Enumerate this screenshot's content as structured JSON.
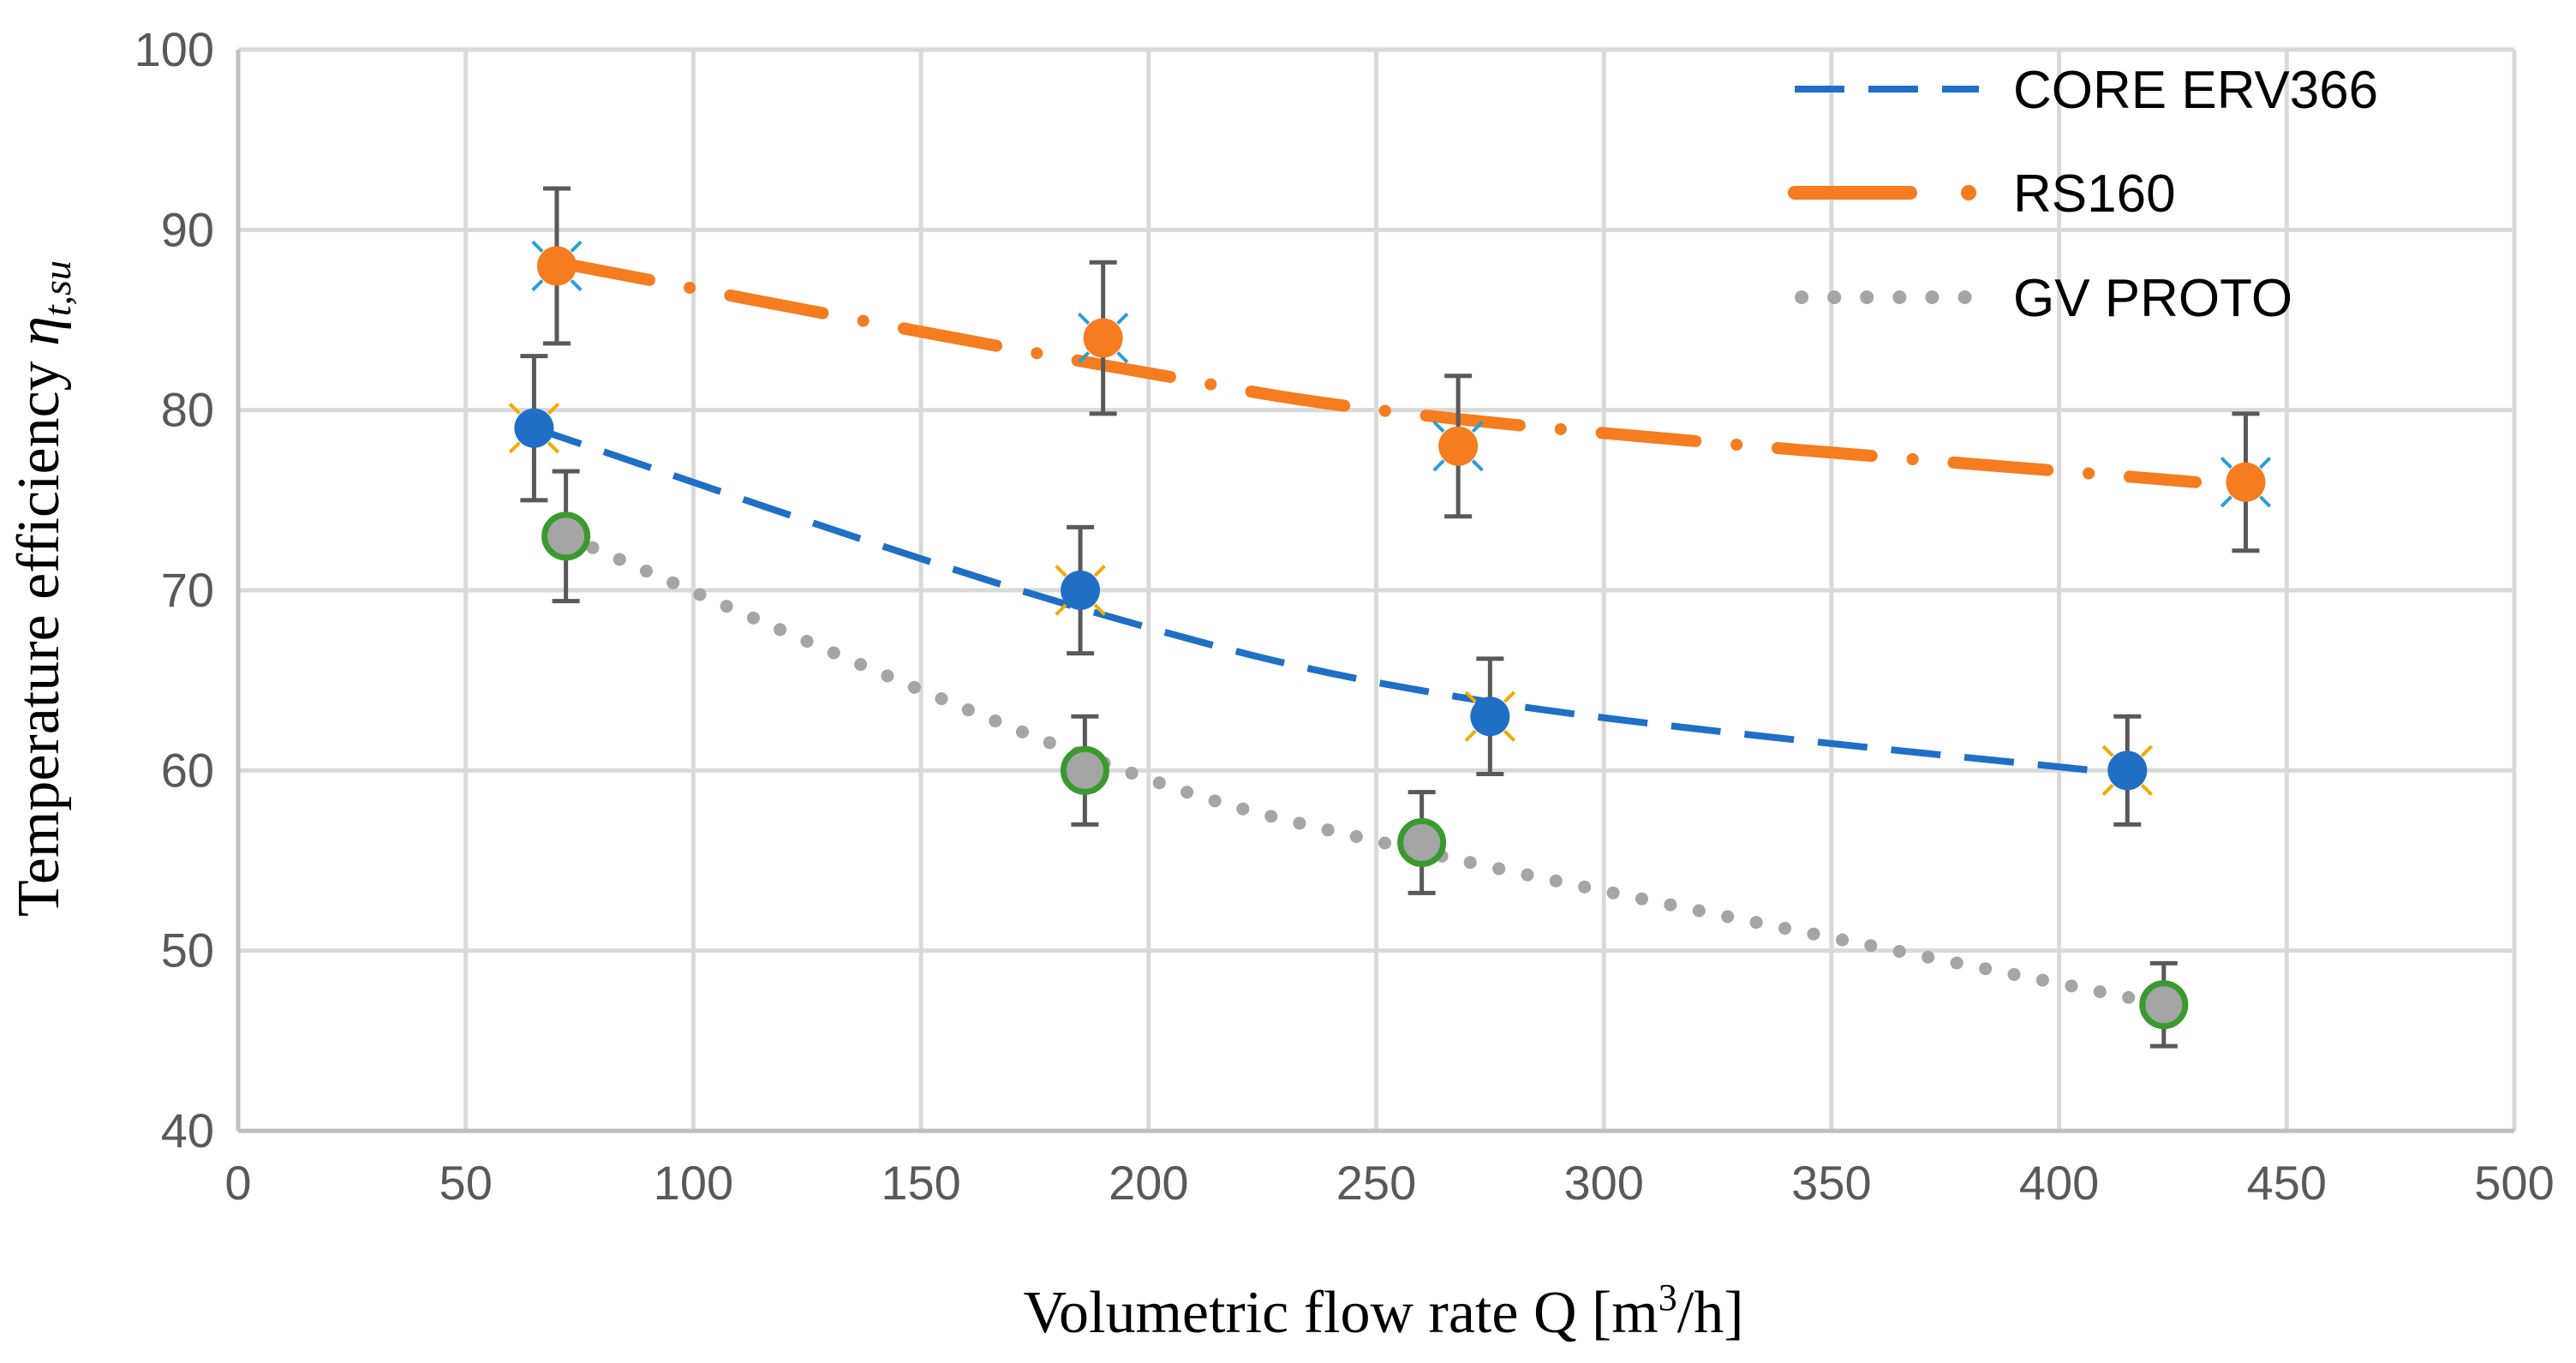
{
  "chart_data": {
    "type": "scatter",
    "title": "",
    "xlabel": "Volumetric flow rate Q [m³/h]",
    "xlabel_parts": {
      "prefix": "Volumetric flow rate Q [m",
      "sup": "3",
      "suffix": "/h]"
    },
    "ylabel": "Temperature efficiency η t,su",
    "ylabel_parts": {
      "text": "Temperature efficiency ",
      "symbol": "η",
      "sub": "t,su"
    },
    "xlim": [
      0,
      500
    ],
    "ylim": [
      40,
      100
    ],
    "xticks": [
      0,
      50,
      100,
      150,
      200,
      250,
      300,
      350,
      400,
      450,
      500
    ],
    "yticks": [
      40,
      50,
      60,
      70,
      80,
      90,
      100
    ],
    "grid": true,
    "legend_position": "top-right",
    "series": [
      {
        "name": "CORE ERV366",
        "color": "#1f6fc5",
        "trend_style": "dashed",
        "marker": "filled-circle-blue",
        "x": [
          65,
          185,
          275,
          415
        ],
        "y": [
          79,
          70,
          63,
          60
        ],
        "error": [
          4,
          3.5,
          3.2,
          3
        ],
        "trendline": [
          [
            65,
            79
          ],
          [
            185,
            69
          ],
          [
            275,
            63.8
          ],
          [
            415,
            59.8
          ]
        ]
      },
      {
        "name": "RS160",
        "color": "#f57c1f",
        "trend_style": "dash-dot",
        "marker": "filled-circle-orange",
        "x": [
          70,
          190,
          268,
          441
        ],
        "y": [
          88,
          84,
          78,
          76
        ],
        "error": [
          4.3,
          4.2,
          3.9,
          3.8
        ],
        "trendline": [
          [
            70,
            88.2
          ],
          [
            190,
            82.5
          ],
          [
            268,
            79.5
          ],
          [
            430,
            76
          ]
        ]
      },
      {
        "name": "GV PROTO",
        "color": "#a5a5a5",
        "trend_style": "dotted",
        "marker": "grey-circle-green-ring",
        "x": [
          72,
          186,
          260,
          423
        ],
        "y": [
          73,
          60,
          56,
          47
        ],
        "error": [
          3.6,
          3,
          2.8,
          2.3
        ],
        "trendline": [
          [
            72,
            73
          ],
          [
            186,
            60.8
          ],
          [
            260,
            55.5
          ],
          [
            423,
            47
          ]
        ]
      }
    ]
  }
}
